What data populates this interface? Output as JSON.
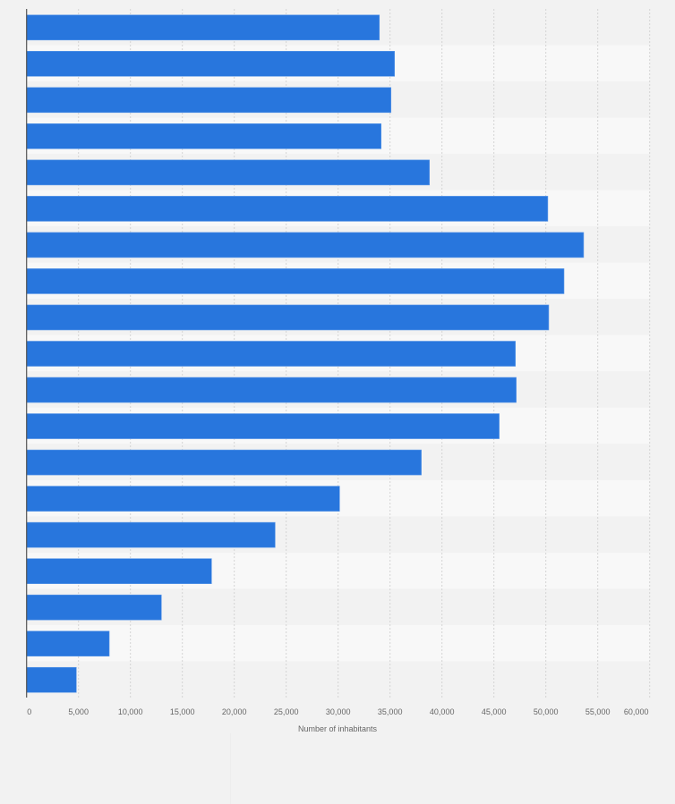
{
  "chart_data": {
    "type": "bar",
    "orientation": "horizontal",
    "title": "",
    "xlabel": "Number of inhabitants",
    "ylabel": "",
    "xlim": [
      0,
      60000
    ],
    "grid": true,
    "legend": "none",
    "bar_color": "#2876dd",
    "band_colors": [
      "#f2f2f2",
      "#f8f8f8"
    ],
    "grid_color": "#d4d4d4",
    "tick_labels": [
      "0",
      "5,000",
      "10,000",
      "15,000",
      "20,000",
      "25,000",
      "30,000",
      "35,000",
      "40,000",
      "45,000",
      "50,000",
      "55,000",
      "60,000"
    ],
    "ticks": [
      0,
      5000,
      10000,
      15000,
      20000,
      25000,
      30000,
      35000,
      40000,
      45000,
      50000,
      55000,
      60000
    ],
    "categories": [
      "",
      "",
      "",
      "",
      "",
      "",
      "",
      "",
      "",
      "",
      "",
      "",
      "",
      "",
      "",
      "",
      "",
      "",
      ""
    ],
    "values": [
      33970,
      35430,
      35090,
      34140,
      38790,
      50190,
      53640,
      51750,
      50280,
      47070,
      47150,
      45510,
      38010,
      30140,
      23930,
      17810,
      12980,
      7960,
      4790
    ]
  }
}
